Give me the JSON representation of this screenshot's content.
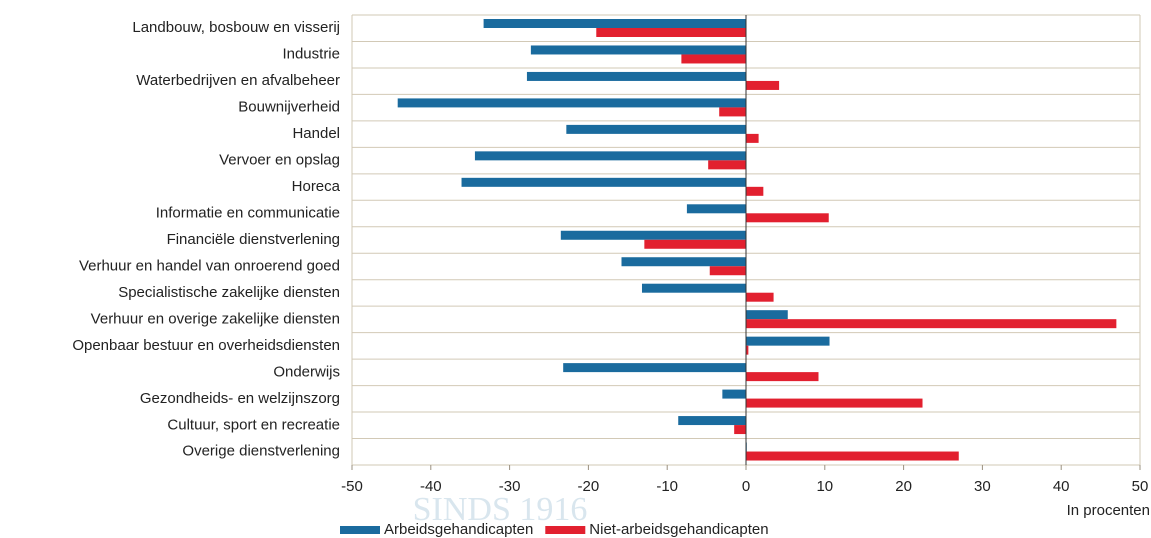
{
  "chart_data": {
    "type": "bar",
    "orientation": "horizontal",
    "categories": [
      "Landbouw, bosbouw en visserij",
      "Industrie",
      "Waterbedrijven en afvalbeheer",
      "Bouwnijverheid",
      "Handel",
      "Vervoer en opslag",
      "Horeca",
      "Informatie en communicatie",
      "Financiële dienstverlening",
      "Verhuur en handel van onroerend goed",
      "Specialistische zakelijke diensten",
      "Verhuur en overige zakelijke diensten",
      "Openbaar bestuur en overheidsdiensten",
      "Onderwijs",
      "Gezondheids- en welzijnszorg",
      "Cultuur, sport en recreatie",
      "Overige dienstverlening"
    ],
    "series": [
      {
        "name": "Arbeidsgehandicapten",
        "color": "#1a6b9e",
        "values": [
          -33.3,
          -27.3,
          -27.8,
          -44.2,
          -22.8,
          -34.4,
          -36.1,
          -7.5,
          -23.5,
          -15.8,
          -13.2,
          5.3,
          10.6,
          -23.2,
          -3,
          -8.6,
          0.1
        ]
      },
      {
        "name": "Niet-arbeidsgehandicapten",
        "color": "#e2202f",
        "values": [
          -19,
          -8.2,
          4.2,
          -3.4,
          1.6,
          -4.8,
          2.2,
          10.5,
          -12.9,
          -4.6,
          3.5,
          47,
          0.3,
          9.2,
          22.4,
          -1.5,
          27
        ]
      }
    ],
    "xlabel": "In procenten",
    "xlim": [
      -50,
      50
    ],
    "xticks": [
      -50,
      -40,
      -30,
      -20,
      -10,
      0,
      10,
      20,
      30,
      40,
      50
    ],
    "grid": true,
    "legend": "bottom",
    "watermark": "SINDS 1916"
  }
}
